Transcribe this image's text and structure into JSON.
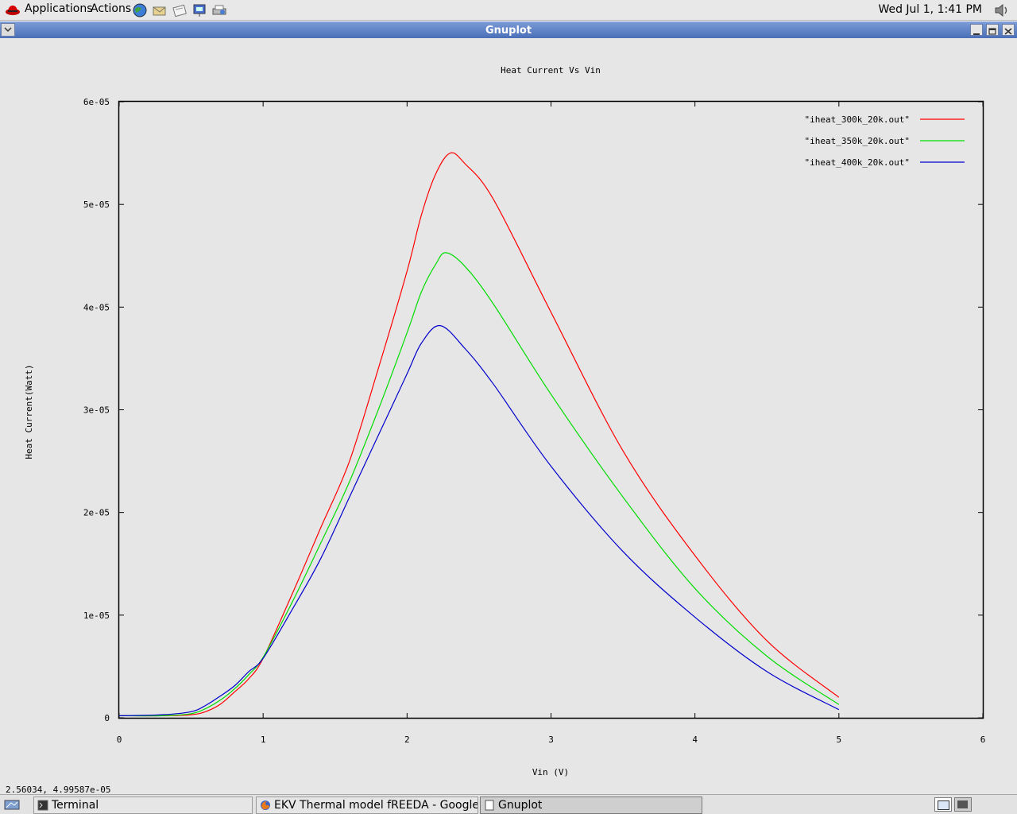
{
  "top_panel": {
    "menu": [
      "Applications",
      "Actions"
    ],
    "launchers": [
      "web-browser-icon",
      "email-icon",
      "text-editor-icon",
      "presentation-icon",
      "printer-icon"
    ],
    "clock": "Wed Jul  1,  1:41 PM"
  },
  "window": {
    "title": "Gnuplot"
  },
  "status": {
    "coordinates": "2.56034,  4.99587e-05"
  },
  "taskbar": {
    "tasks": [
      {
        "label": "Terminal",
        "active": false
      },
      {
        "label": "EKV Thermal model fREEDA - Google Sear",
        "active": false
      },
      {
        "label": "Gnuplot",
        "active": true
      }
    ]
  },
  "chart_data": {
    "type": "line",
    "title": "Heat Current Vs Vin",
    "xlabel": "Vin (V)",
    "ylabel": "Heat Current(Watt)",
    "xlim": [
      0,
      6
    ],
    "ylim": [
      0,
      6e-05
    ],
    "xticks": [
      "0",
      "1",
      "2",
      "3",
      "4",
      "5",
      "6"
    ],
    "yticks": [
      "0",
      "1e-05",
      "2e-05",
      "3e-05",
      "4e-05",
      "5e-05",
      "6e-05"
    ],
    "legend_position": "top-right",
    "grid": false,
    "series": [
      {
        "name": "\"iheat_300k_20k.out\"",
        "color": "#ff0000",
        "x": [
          0,
          0.3,
          0.5,
          0.6,
          0.7,
          0.8,
          0.9,
          1.0,
          1.2,
          1.4,
          1.6,
          1.8,
          2.0,
          2.1,
          2.2,
          2.3,
          2.4,
          2.6,
          3.0,
          3.5,
          4.0,
          4.5,
          5.0
        ],
        "y": [
          2e-07,
          2e-07,
          3e-07,
          6e-07,
          1.3e-06,
          2.5e-06,
          3.8e-06,
          5.8e-06,
          1.2e-05,
          1.85e-05,
          2.5e-05,
          3.4e-05,
          4.35e-05,
          4.9e-05,
          5.3e-05,
          5.5e-05,
          5.4e-05,
          5.05e-05,
          3.95e-05,
          2.6e-05,
          1.58e-05,
          7.5e-06,
          2e-06
        ]
      },
      {
        "name": "\"iheat_350k_20k.out\"",
        "color": "#00dd00",
        "x": [
          0,
          0.3,
          0.5,
          0.6,
          0.7,
          0.8,
          0.9,
          1.0,
          1.2,
          1.4,
          1.6,
          1.8,
          2.0,
          2.1,
          2.2,
          2.27,
          2.4,
          2.6,
          3.0,
          3.5,
          4.0,
          4.5,
          5.0
        ],
        "y": [
          2e-07,
          2e-07,
          4e-07,
          9e-07,
          1.7e-06,
          2.8e-06,
          4.2e-06,
          5.9e-06,
          1.12e-05,
          1.7e-05,
          2.3e-05,
          3e-05,
          3.75e-05,
          4.15e-05,
          4.42e-05,
          4.53e-05,
          4.4e-05,
          4.03e-05,
          3.15e-05,
          2.15e-05,
          1.26e-05,
          6e-06,
          1.3e-06
        ]
      },
      {
        "name": "\"iheat_400k_20k.out\"",
        "color": "#0000cc",
        "x": [
          0,
          0.3,
          0.5,
          0.6,
          0.7,
          0.8,
          0.9,
          1.0,
          1.2,
          1.4,
          1.6,
          1.8,
          2.0,
          2.1,
          2.23,
          2.4,
          2.6,
          3.0,
          3.5,
          4.0,
          4.5,
          5.0
        ],
        "y": [
          2e-07,
          3e-07,
          6e-07,
          1.2e-06,
          2.1e-06,
          3.1e-06,
          4.5e-06,
          5.8e-06,
          1.05e-05,
          1.55e-05,
          2.15e-05,
          2.75e-05,
          3.35e-05,
          3.65e-05,
          3.82e-05,
          3.6e-05,
          3.25e-05,
          2.45e-05,
          1.62e-05,
          9.8e-06,
          4.5e-06,
          8e-07
        ]
      }
    ]
  }
}
